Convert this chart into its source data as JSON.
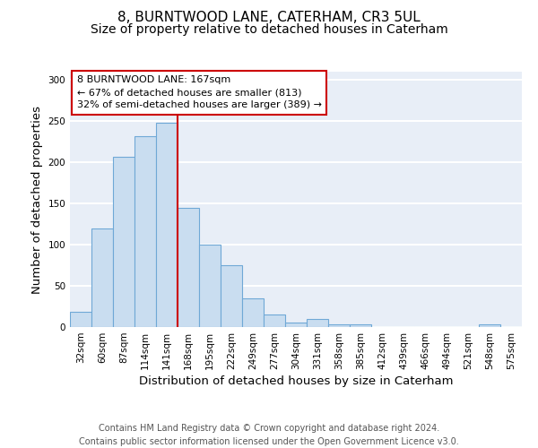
{
  "title_line1": "8, BURNTWOOD LANE, CATERHAM, CR3 5UL",
  "title_line2": "Size of property relative to detached houses in Caterham",
  "xlabel": "Distribution of detached houses by size in Caterham",
  "ylabel": "Number of detached properties",
  "footnote": "Contains HM Land Registry data © Crown copyright and database right 2024.\nContains public sector information licensed under the Open Government Licence v3.0.",
  "categories": [
    "32sqm",
    "60sqm",
    "87sqm",
    "114sqm",
    "141sqm",
    "168sqm",
    "195sqm",
    "222sqm",
    "249sqm",
    "277sqm",
    "304sqm",
    "331sqm",
    "358sqm",
    "385sqm",
    "412sqm",
    "439sqm",
    "466sqm",
    "494sqm",
    "521sqm",
    "548sqm",
    "575sqm"
  ],
  "values": [
    18,
    120,
    207,
    232,
    248,
    145,
    100,
    75,
    35,
    15,
    5,
    10,
    3,
    3,
    0,
    0,
    0,
    0,
    0,
    3,
    0
  ],
  "bar_color": "#c9ddf0",
  "bar_edge_color": "#6fa8d6",
  "bar_linewidth": 0.8,
  "property_label": "8 BURNTWOOD LANE: 167sqm",
  "annotation_line2": "← 67% of detached houses are smaller (813)",
  "annotation_line3": "32% of semi-detached houses are larger (389) →",
  "vline_color": "#cc0000",
  "ylim": [
    0,
    310
  ],
  "yticks": [
    0,
    50,
    100,
    150,
    200,
    250,
    300
  ],
  "background_color": "#e8eef7",
  "grid_color": "#ffffff",
  "title_fontsize": 11,
  "subtitle_fontsize": 10,
  "axis_label_fontsize": 9.5,
  "tick_fontsize": 7.5,
  "annotation_fontsize": 8,
  "footnote_fontsize": 7
}
